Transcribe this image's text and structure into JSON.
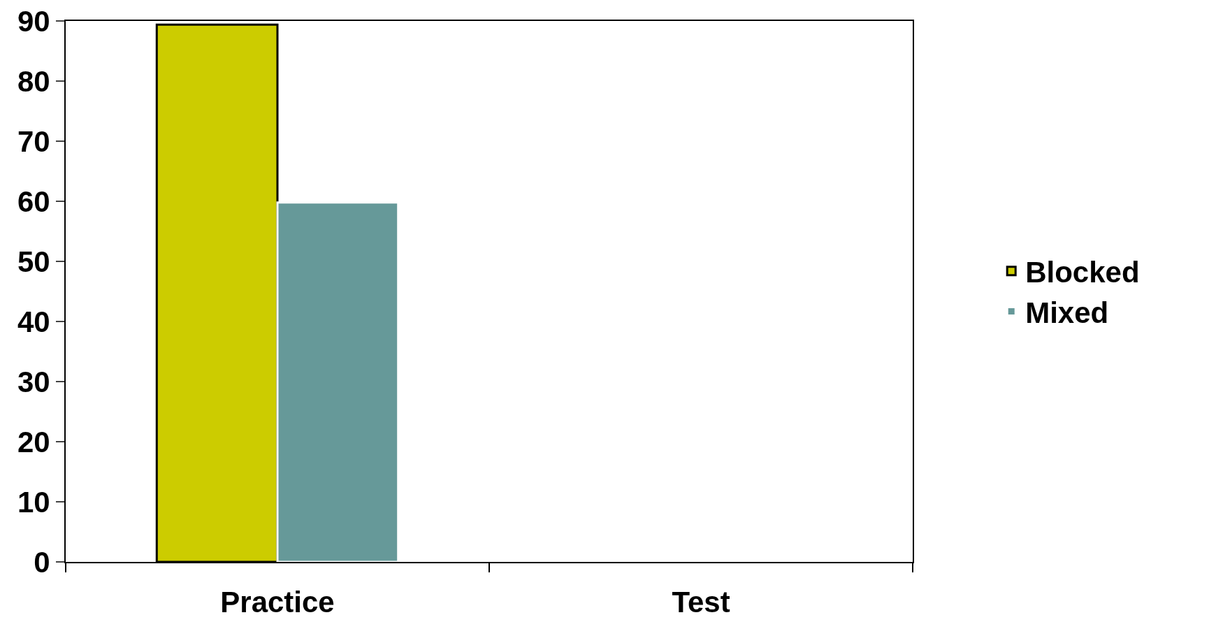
{
  "chart_data": {
    "type": "bar",
    "categories": [
      "Practice",
      "Test"
    ],
    "series": [
      {
        "name": "Blocked",
        "color": "#cccc00",
        "values": [
          89.4,
          0
        ]
      },
      {
        "name": "Mixed",
        "color": "#669999",
        "values": [
          59.8,
          0
        ]
      }
    ],
    "ylim": [
      0,
      90
    ],
    "yticks": [
      0,
      10,
      20,
      30,
      40,
      50,
      60,
      70,
      80,
      90
    ],
    "grid": false,
    "legend": "right"
  }
}
